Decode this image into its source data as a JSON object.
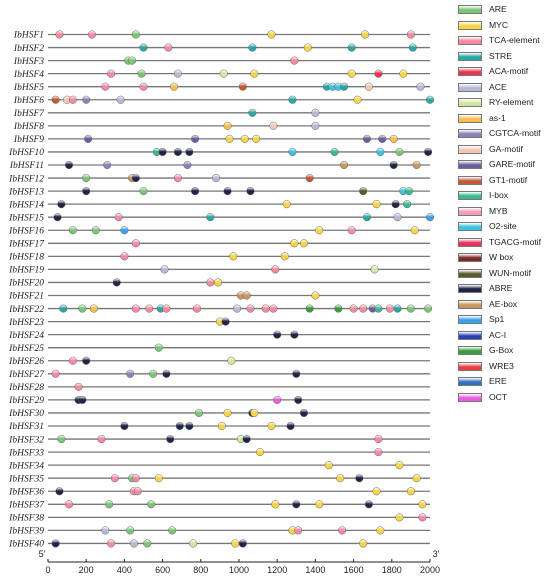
{
  "axis": {
    "start_label": "5'",
    "end_label": "3'",
    "ticks": [
      "0",
      "200",
      "400",
      "600",
      "800",
      "1000",
      "1200",
      "1400",
      "1600",
      "1800",
      "2000"
    ]
  },
  "genes": [
    "IbHSF1",
    "IbHSF2",
    "IbHSF3",
    "IbHSF4",
    "IbHSF5",
    "IbHSF6",
    "IbHSF7",
    "IbHSF8",
    "IbHSF9",
    "IbHSF10",
    "IbHSF11",
    "IbHSF12",
    "IbHSF13",
    "IbHSF14",
    "IbHSF15",
    "IbHSF16",
    "IbHSF17",
    "IbHSF18",
    "IbHSF19",
    "IbHSF20",
    "IbHSF21",
    "IbHSF22",
    "IbHSF23",
    "IbHSF24",
    "IbHSF25",
    "IbHSF26",
    "IbHSF27",
    "IbHSF28",
    "IbHSF29",
    "IbHSF30",
    "IbHSF31",
    "IbHSF32",
    "IbHSF33",
    "IbHSF34",
    "IbHSF35",
    "IbHSF36",
    "IbHSF37",
    "IbHSF38",
    "IbHSF39",
    "IbHSF40"
  ],
  "legend": [
    {
      "name": "ARE",
      "color": "#7cc576"
    },
    {
      "name": "MYC",
      "color": "#f5d547"
    },
    {
      "name": "TCA-element",
      "color": "#f28aa0"
    },
    {
      "name": "STRE",
      "color": "#2aa6a6"
    },
    {
      "name": "ACA-motif",
      "color": "#e8344f"
    },
    {
      "name": "ACE",
      "color": "#b9b9d6"
    },
    {
      "name": "RY-element",
      "color": "#cfe8a0"
    },
    {
      "name": "as-1",
      "color": "#f7bd4f"
    },
    {
      "name": "CGTCA-motif",
      "color": "#8c82b8"
    },
    {
      "name": "GA-motif",
      "color": "#f3c7b4"
    },
    {
      "name": "GARE-motif",
      "color": "#6a5f9e"
    },
    {
      "name": "GT1-motif",
      "color": "#c45a35"
    },
    {
      "name": "I-box",
      "color": "#3cb88f"
    },
    {
      "name": "MYB",
      "color": "#f49bb8"
    },
    {
      "name": "O2-site",
      "color": "#3fc1e0"
    },
    {
      "name": "TGACG-motif",
      "color": "#e8345c"
    },
    {
      "name": "W box",
      "color": "#7a2a2a"
    },
    {
      "name": "WUN-motif",
      "color": "#585a2c"
    },
    {
      "name": "ABRE",
      "color": "#1f2547"
    },
    {
      "name": "AE-box",
      "color": "#c8975f"
    },
    {
      "name": "Sp1",
      "color": "#3aa0e8"
    },
    {
      "name": "AC-I",
      "color": "#2a3fb0"
    },
    {
      "name": "G-Box",
      "color": "#3f9a3f"
    },
    {
      "name": "WRE3",
      "color": "#e84040"
    },
    {
      "name": "ERE",
      "color": "#3470c0"
    },
    {
      "name": "OCT",
      "color": "#e85ce0"
    }
  ],
  "chart_data": {
    "type": "diagram",
    "axis_range": [
      0,
      2000
    ],
    "motifs": [
      {
        "gene": "IbHSF1",
        "items": [
          [
            60,
            "TCA-element"
          ],
          [
            230,
            "TCA-element"
          ],
          [
            460,
            "ARE"
          ],
          [
            1170,
            "MYC"
          ],
          [
            1660,
            "MYC"
          ],
          [
            1900,
            "TCA-element"
          ]
        ]
      },
      {
        "gene": "IbHSF2",
        "items": [
          [
            500,
            "STRE"
          ],
          [
            630,
            "TCA-element"
          ],
          [
            1070,
            "STRE"
          ],
          [
            1360,
            "MYC"
          ],
          [
            1590,
            "STRE"
          ],
          [
            1910,
            "STRE"
          ]
        ]
      },
      {
        "gene": "IbHSF3",
        "items": [
          [
            420,
            "ARE"
          ],
          [
            440,
            "ARE"
          ],
          [
            1290,
            "TCA-element"
          ]
        ]
      },
      {
        "gene": "IbHSF4",
        "items": [
          [
            330,
            "TCA-element"
          ],
          [
            490,
            "ARE"
          ],
          [
            680,
            "ACE"
          ],
          [
            920,
            "RY-element"
          ],
          [
            1080,
            "MYC"
          ],
          [
            1590,
            "MYC"
          ],
          [
            1730,
            "ACA-motif"
          ],
          [
            1860,
            "MYC"
          ]
        ]
      },
      {
        "gene": "IbHSF5",
        "items": [
          [
            300,
            "TCA-element"
          ],
          [
            500,
            "TCA-element"
          ],
          [
            660,
            "as-1"
          ],
          [
            1020,
            "GT1-motif"
          ],
          [
            1460,
            "STRE"
          ],
          [
            1490,
            "O2-site"
          ],
          [
            1520,
            "O2-site"
          ],
          [
            1550,
            "STRE"
          ],
          [
            1680,
            "GA-motif"
          ],
          [
            1950,
            "ACE"
          ]
        ]
      },
      {
        "gene": "IbHSF6",
        "items": [
          [
            40,
            "GT1-motif"
          ],
          [
            100,
            "GA-motif"
          ],
          [
            130,
            "TCA-element"
          ],
          [
            200,
            "CGTCA-motif"
          ],
          [
            380,
            "ACE"
          ],
          [
            1280,
            "STRE"
          ],
          [
            1620,
            "MYC"
          ],
          [
            2000,
            "STRE"
          ]
        ]
      },
      {
        "gene": "IbHSF7",
        "items": [
          [
            1070,
            "STRE"
          ],
          [
            1400,
            "ACE"
          ]
        ]
      },
      {
        "gene": "IbHSF8",
        "items": [
          [
            940,
            "as-1"
          ],
          [
            1180,
            "GA-motif"
          ],
          [
            1400,
            "ACE"
          ]
        ]
      },
      {
        "gene": "IbHSF9",
        "items": [
          [
            210,
            "GARE-motif"
          ],
          [
            770,
            "GARE-motif"
          ],
          [
            950,
            "MYC"
          ],
          [
            1030,
            "MYC"
          ],
          [
            1090,
            "MYC"
          ],
          [
            1670,
            "GARE-motif"
          ],
          [
            1750,
            "GARE-motif"
          ],
          [
            1810,
            "as-1"
          ]
        ]
      },
      {
        "gene": "IbHSF10",
        "items": [
          [
            570,
            "I-box"
          ],
          [
            600,
            "ABRE"
          ],
          [
            680,
            "ABRE"
          ],
          [
            740,
            "ABRE"
          ],
          [
            1280,
            "O2-site"
          ],
          [
            1500,
            "I-box"
          ],
          [
            1740,
            "O2-site"
          ],
          [
            1840,
            "ARE"
          ],
          [
            1990,
            "ABRE"
          ]
        ]
      },
      {
        "gene": "IbHSF11",
        "items": [
          [
            110,
            "ABRE"
          ],
          [
            310,
            "CGTCA-motif"
          ],
          [
            730,
            "CGTCA-motif"
          ],
          [
            1550,
            "AE-box"
          ],
          [
            1810,
            "ABRE"
          ],
          [
            1930,
            "AE-box"
          ]
        ]
      },
      {
        "gene": "IbHSF12",
        "items": [
          [
            200,
            "ARE"
          ],
          [
            440,
            "AE-box"
          ],
          [
            460,
            "ABRE"
          ],
          [
            680,
            "TCA-element"
          ],
          [
            880,
            "ACE"
          ],
          [
            1370,
            "GT1-motif"
          ]
        ]
      },
      {
        "gene": "IbHSF13",
        "items": [
          [
            200,
            "ABRE"
          ],
          [
            500,
            "ARE"
          ],
          [
            770,
            "ABRE"
          ],
          [
            940,
            "ABRE"
          ],
          [
            1060,
            "ABRE"
          ],
          [
            1650,
            "WUN-motif"
          ],
          [
            1860,
            "O2-site"
          ],
          [
            1890,
            "I-box"
          ]
        ]
      },
      {
        "gene": "IbHSF14",
        "items": [
          [
            70,
            "ABRE"
          ],
          [
            1250,
            "MYC"
          ],
          [
            1720,
            "MYC"
          ],
          [
            1820,
            "ABRE"
          ],
          [
            1880,
            "I-box"
          ]
        ]
      },
      {
        "gene": "IbHSF15",
        "items": [
          [
            50,
            "ABRE"
          ],
          [
            370,
            "TCA-element"
          ],
          [
            850,
            "STRE"
          ],
          [
            1670,
            "STRE"
          ],
          [
            1830,
            "ACE"
          ],
          [
            2000,
            "Sp1"
          ]
        ]
      },
      {
        "gene": "IbHSF16",
        "items": [
          [
            130,
            "ARE"
          ],
          [
            250,
            "ARE"
          ],
          [
            400,
            "Sp1"
          ],
          [
            1420,
            "MYC"
          ],
          [
            1590,
            "TCA-element"
          ],
          [
            1920,
            "MYC"
          ]
        ]
      },
      {
        "gene": "IbHSF17",
        "items": [
          [
            460,
            "TCA-element"
          ],
          [
            1290,
            "MYC"
          ],
          [
            1340,
            "MYC"
          ]
        ]
      },
      {
        "gene": "IbHSF18",
        "items": [
          [
            400,
            "TCA-element"
          ],
          [
            970,
            "MYC"
          ],
          [
            1240,
            "MYC"
          ]
        ]
      },
      {
        "gene": "IbHSF19",
        "items": [
          [
            610,
            "ACE"
          ],
          [
            1190,
            "TCA-element"
          ],
          [
            1710,
            "RY-element"
          ]
        ]
      },
      {
        "gene": "IbHSF20",
        "items": [
          [
            360,
            "ABRE"
          ],
          [
            850,
            "TCA-element"
          ],
          [
            890,
            "MYC"
          ]
        ]
      },
      {
        "gene": "IbHSF21",
        "items": [
          [
            1010,
            "AE-box"
          ],
          [
            1040,
            "AE-box"
          ],
          [
            1400,
            "MYC"
          ]
        ]
      },
      {
        "gene": "IbHSF22",
        "items": [
          [
            80,
            "STRE"
          ],
          [
            180,
            "ARE"
          ],
          [
            240,
            "as-1"
          ],
          [
            460,
            "TCA-element"
          ],
          [
            530,
            "TCA-element"
          ],
          [
            590,
            "STRE"
          ],
          [
            620,
            "TCA-element"
          ],
          [
            780,
            "TCA-element"
          ],
          [
            990,
            "ACE"
          ],
          [
            1060,
            "TCA-element"
          ],
          [
            1140,
            "TCA-element"
          ],
          [
            1180,
            "TCA-element"
          ],
          [
            1370,
            "G-Box"
          ],
          [
            1520,
            "G-Box"
          ],
          [
            1600,
            "TCA-element"
          ],
          [
            1650,
            "TCA-element"
          ],
          [
            1700,
            "GARE-motif"
          ],
          [
            1730,
            "I-box"
          ],
          [
            1790,
            "TCA-element"
          ],
          [
            1830,
            "STRE"
          ],
          [
            1900,
            "ARE"
          ],
          [
            1990,
            "ARE"
          ]
        ]
      },
      {
        "gene": "IbHSF23",
        "items": [
          [
            900,
            "MYC"
          ],
          [
            930,
            "ABRE"
          ]
        ]
      },
      {
        "gene": "IbHSF24",
        "items": [
          [
            1200,
            "ABRE"
          ],
          [
            1290,
            "ABRE"
          ]
        ]
      },
      {
        "gene": "IbHSF25",
        "items": [
          [
            580,
            "ARE"
          ]
        ]
      },
      {
        "gene": "IbHSF26",
        "items": [
          [
            130,
            "TCA-element"
          ],
          [
            200,
            "ABRE"
          ],
          [
            960,
            "RY-element"
          ]
        ]
      },
      {
        "gene": "IbHSF27",
        "items": [
          [
            40,
            "TCA-element"
          ],
          [
            430,
            "CGTCA-motif"
          ],
          [
            550,
            "ARE"
          ],
          [
            620,
            "ABRE"
          ],
          [
            1300,
            "ABRE"
          ]
        ]
      },
      {
        "gene": "IbHSF28",
        "items": [
          [
            160,
            "TCA-element"
          ]
        ]
      },
      {
        "gene": "IbHSF29",
        "items": [
          [
            160,
            "ABRE"
          ],
          [
            180,
            "ABRE"
          ],
          [
            1200,
            "OCT"
          ],
          [
            1310,
            "ABRE"
          ]
        ]
      },
      {
        "gene": "IbHSF30",
        "items": [
          [
            790,
            "ARE"
          ],
          [
            940,
            "MYC"
          ],
          [
            1070,
            "ABRE"
          ],
          [
            1080,
            "MYC"
          ],
          [
            1340,
            "ABRE"
          ]
        ]
      },
      {
        "gene": "IbHSF31",
        "items": [
          [
            400,
            "ABRE"
          ],
          [
            690,
            "ABRE"
          ],
          [
            740,
            "ABRE"
          ],
          [
            910,
            "MYC"
          ],
          [
            1170,
            "MYC"
          ],
          [
            1270,
            "ABRE"
          ]
        ]
      },
      {
        "gene": "IbHSF32",
        "items": [
          [
            70,
            "ARE"
          ],
          [
            280,
            "TCA-element"
          ],
          [
            640,
            "ABRE"
          ],
          [
            1010,
            "RY-element"
          ],
          [
            1040,
            "ABRE"
          ],
          [
            1730,
            "TCA-element"
          ]
        ]
      },
      {
        "gene": "IbHSF33",
        "items": [
          [
            1110,
            "MYC"
          ],
          [
            1730,
            "TCA-element"
          ]
        ]
      },
      {
        "gene": "IbHSF34",
        "items": [
          [
            1470,
            "MYC"
          ],
          [
            1840,
            "MYC"
          ]
        ]
      },
      {
        "gene": "IbHSF35",
        "items": [
          [
            350,
            "TCA-element"
          ],
          [
            440,
            "ARE"
          ],
          [
            460,
            "TCA-element"
          ],
          [
            580,
            "MYC"
          ],
          [
            1530,
            "MYC"
          ],
          [
            1630,
            "ABRE"
          ],
          [
            1930,
            "MYC"
          ]
        ]
      },
      {
        "gene": "IbHSF36",
        "items": [
          [
            60,
            "ABRE"
          ],
          [
            450,
            "TCA-element"
          ],
          [
            470,
            "TCA-element"
          ],
          [
            1720,
            "MYC"
          ],
          [
            1900,
            "MYC"
          ]
        ]
      },
      {
        "gene": "IbHSF37",
        "items": [
          [
            110,
            "TCA-element"
          ],
          [
            320,
            "ARE"
          ],
          [
            540,
            "ARE"
          ],
          [
            1190,
            "MYC"
          ],
          [
            1300,
            "ABRE"
          ],
          [
            1420,
            "MYC"
          ],
          [
            1680,
            "ABRE"
          ],
          [
            1960,
            "MYC"
          ]
        ]
      },
      {
        "gene": "IbHSF38",
        "items": [
          [
            1840,
            "MYC"
          ],
          [
            1960,
            "TCA-element"
          ]
        ]
      },
      {
        "gene": "IbHSF39",
        "items": [
          [
            300,
            "ACE"
          ],
          [
            430,
            "ARE"
          ],
          [
            650,
            "ARE"
          ],
          [
            1280,
            "MYC"
          ],
          [
            1310,
            "TCA-element"
          ],
          [
            1540,
            "TCA-element"
          ],
          [
            1740,
            "MYC"
          ]
        ]
      },
      {
        "gene": "IbHSF40",
        "items": [
          [
            40,
            "ABRE"
          ],
          [
            330,
            "TCA-element"
          ],
          [
            450,
            "ACE"
          ],
          [
            520,
            "ARE"
          ],
          [
            760,
            "RY-element"
          ],
          [
            980,
            "MYC"
          ],
          [
            1020,
            "ABRE"
          ],
          [
            1650,
            "MYC"
          ]
        ]
      }
    ]
  }
}
